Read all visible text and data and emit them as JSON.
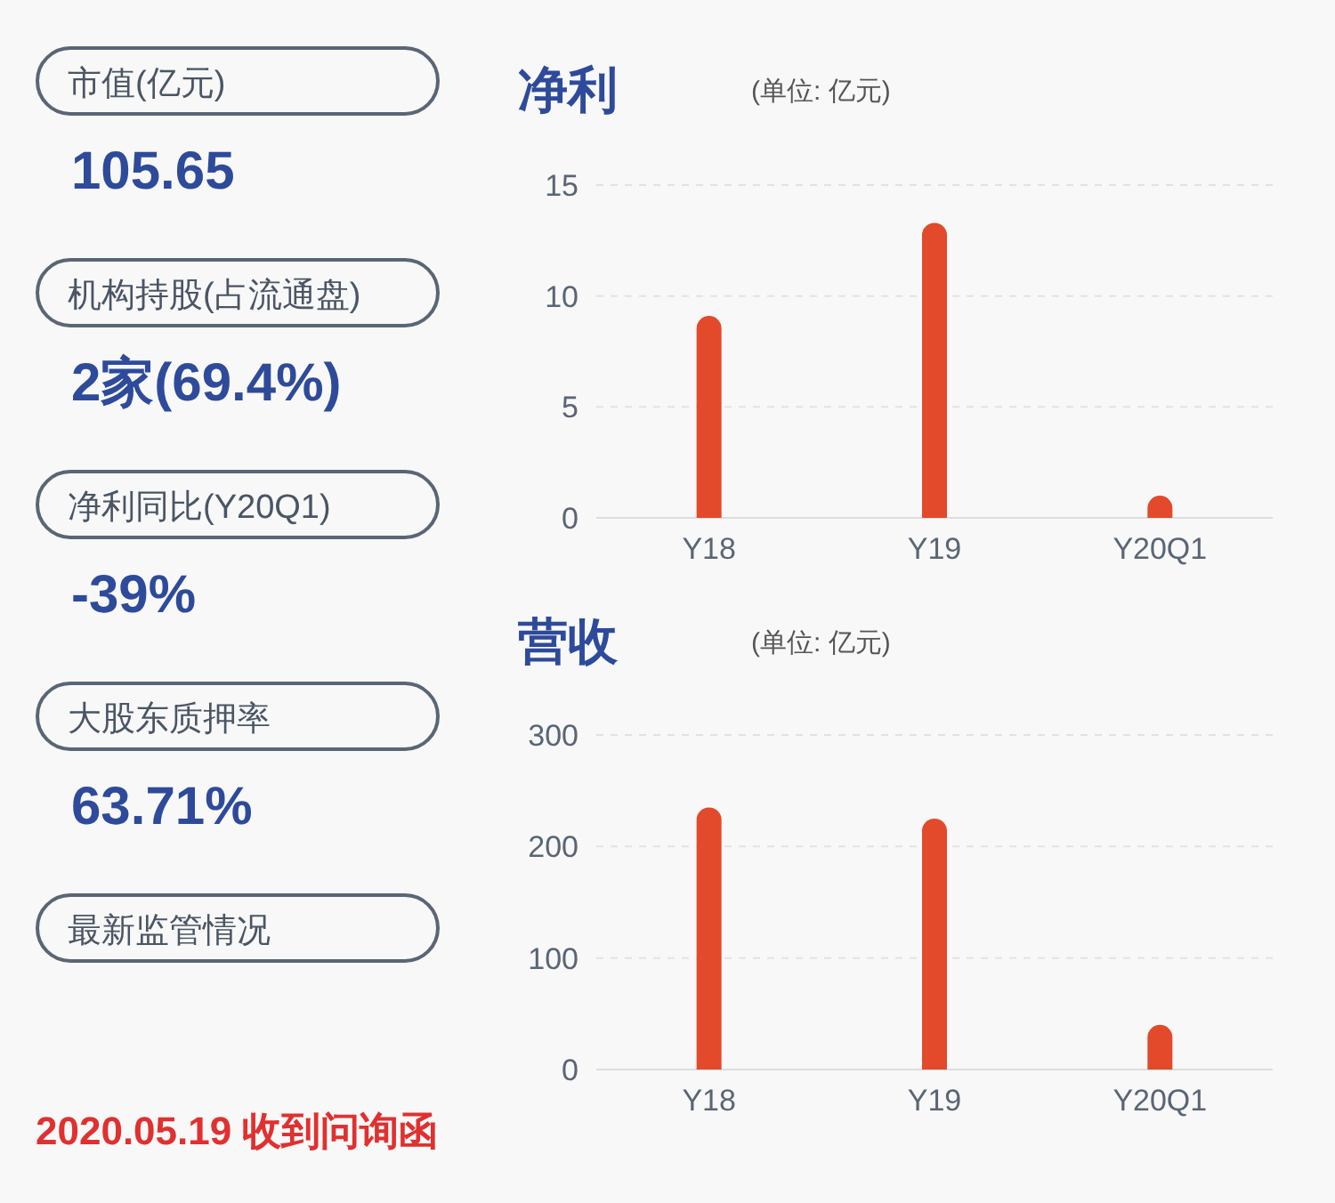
{
  "chart_data": [
    {
      "type": "other",
      "annotations": [
        "市值(亿元)",
        "105.65",
        "机构持股(占流通盘)",
        "2家(69.4%)",
        "净利同比(Y20Q1)",
        "-39%",
        "大股东质押率",
        "63.71%",
        "最新监管情况",
        "2020.05.19 收到问询函"
      ]
    },
    {
      "type": "bar",
      "title": "净利",
      "subtitle": "(单位: 亿元)",
      "categories": [
        "Y18",
        "Y19",
        "Y20Q1"
      ],
      "series": [
        {
          "color": "#e24a2b",
          "values": [
            9.1,
            13.3,
            1.0
          ]
        }
      ],
      "ylim": [
        0,
        15
      ],
      "yticks": [
        0,
        5,
        10,
        15
      ],
      "grid": "y"
    },
    {
      "type": "bar",
      "title": "营收",
      "subtitle": "(单位: 亿元)",
      "categories": [
        "Y18",
        "Y19",
        "Y20Q1"
      ],
      "series": [
        {
          "color": "#e24a2b",
          "values": [
            235,
            225,
            40
          ]
        }
      ],
      "ylim": [
        0,
        300
      ],
      "yticks": [
        0,
        100,
        200,
        300
      ],
      "grid": "y"
    }
  ]
}
